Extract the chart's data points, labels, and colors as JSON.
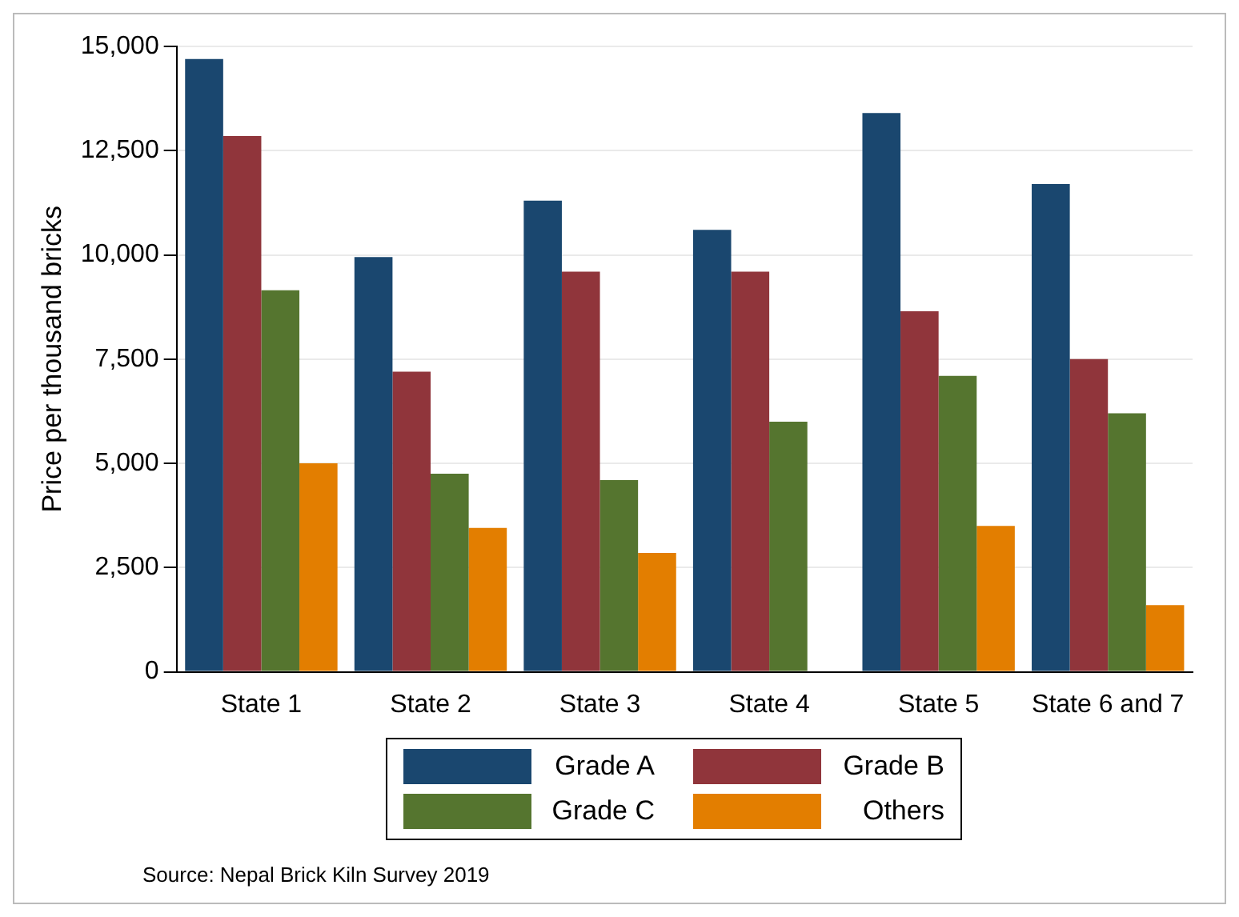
{
  "chart_data": {
    "type": "bar",
    "ylabel": "Price per thousand bricks",
    "categories": [
      "State 1",
      "State 2",
      "State 3",
      "State 4",
      "State 5",
      "State 6 and 7"
    ],
    "series": [
      {
        "name": "Grade A",
        "color": "#1a476f",
        "values": [
          14700,
          9950,
          11300,
          10600,
          13400,
          11700
        ]
      },
      {
        "name": "Grade B",
        "color": "#90353b",
        "values": [
          12850,
          7200,
          9600,
          9600,
          8650,
          7500
        ]
      },
      {
        "name": "Grade C",
        "color": "#55752f",
        "values": [
          9150,
          4750,
          4600,
          6000,
          7100,
          6200
        ]
      },
      {
        "name": "Others",
        "color": "#e37e00",
        "values": [
          5000,
          3450,
          2850,
          null,
          3500,
          1600
        ]
      }
    ],
    "ylim": [
      0,
      15000
    ],
    "yticks": [
      0,
      {
        "value": 2500,
        "label": "2,500"
      },
      {
        "value": 5000,
        "label": "5,000"
      },
      {
        "value": 7500,
        "label": "7,500"
      },
      {
        "value": 10000,
        "label": "10,000"
      },
      {
        "value": 12500,
        "label": "12,500"
      },
      {
        "value": 15000,
        "label": "15,000"
      }
    ],
    "grid": "y",
    "legend": "bottom",
    "annotations": [
      "Source: Nepal Brick Kiln Survey 2019"
    ]
  }
}
